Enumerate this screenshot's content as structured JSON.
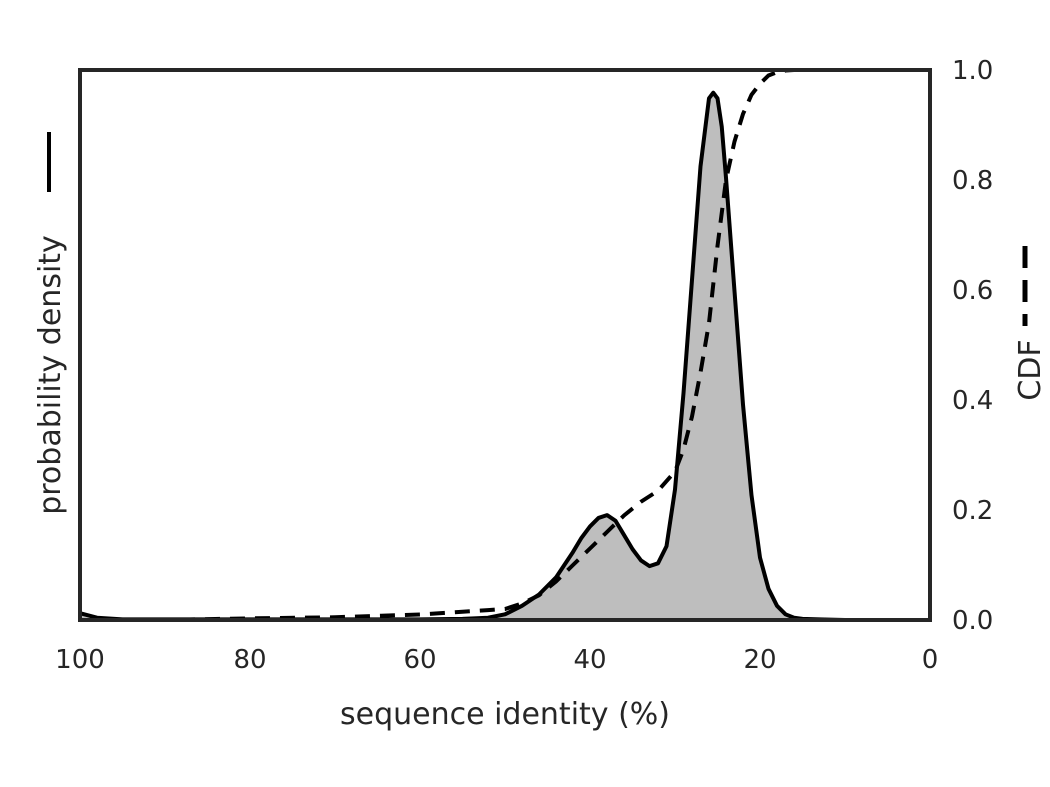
{
  "chart_data": {
    "type": "area",
    "xlabel": "sequence identity (%)",
    "ylabel_left": "probability density",
    "ylabel_right": "CDF",
    "x_reversed": true,
    "xlim": [
      100,
      0
    ],
    "x_ticks": [
      "100",
      "80",
      "60",
      "40",
      "20",
      "0"
    ],
    "x_tick_values": [
      100,
      80,
      60,
      40,
      20,
      0
    ],
    "y_right_lim": [
      0,
      1
    ],
    "y_right_ticks": [
      "0.0",
      "0.2",
      "0.4",
      "0.6",
      "0.8",
      "1.0"
    ],
    "y_right_tick_values": [
      0,
      0.2,
      0.4,
      0.6,
      0.8,
      1.0
    ],
    "y_left_ticks_shown": false,
    "grid": false,
    "colors": {
      "fill": "#bebebe",
      "line": "#000000",
      "frame": "#262626",
      "text": "#262626"
    },
    "series": [
      {
        "style": "solid-filled",
        "axis": "left",
        "x": [
          100,
          98,
          95,
          90,
          80,
          70,
          60,
          55,
          52,
          50,
          48,
          46,
          44,
          42,
          41,
          40,
          39,
          38,
          37,
          36,
          35,
          34,
          33,
          32,
          31,
          30,
          29,
          28,
          27,
          26,
          25.5,
          25,
          24.5,
          24,
          23,
          22,
          21,
          20,
          19,
          18,
          17,
          16,
          15,
          13,
          10,
          0
        ],
        "y": [
          0.012,
          0.004,
          0.001,
          0.001,
          0.001,
          0.001,
          0.001,
          0.002,
          0.004,
          0.01,
          0.025,
          0.045,
          0.075,
          0.12,
          0.145,
          0.165,
          0.18,
          0.185,
          0.175,
          0.15,
          0.125,
          0.105,
          0.095,
          0.1,
          0.13,
          0.23,
          0.4,
          0.6,
          0.8,
          0.92,
          0.93,
          0.92,
          0.87,
          0.78,
          0.58,
          0.38,
          0.22,
          0.11,
          0.055,
          0.025,
          0.01,
          0.004,
          0.002,
          0.001,
          0.0,
          0.0
        ]
      },
      {
        "style": "dashed",
        "axis": "right",
        "x": [
          100,
          95,
          90,
          80,
          70,
          60,
          55,
          52,
          50,
          48,
          46,
          44,
          42,
          40,
          38,
          36,
          34,
          32,
          30,
          29,
          28,
          27,
          26,
          25,
          24,
          23,
          22,
          21,
          20,
          19,
          18,
          17,
          16,
          10,
          0
        ],
        "y": [
          0.0,
          0.0,
          0.0,
          0.003,
          0.005,
          0.01,
          0.015,
          0.018,
          0.02,
          0.03,
          0.045,
          0.07,
          0.1,
          0.13,
          0.16,
          0.19,
          0.215,
          0.235,
          0.27,
          0.31,
          0.37,
          0.45,
          0.54,
          0.68,
          0.8,
          0.87,
          0.92,
          0.955,
          0.975,
          0.99,
          0.996,
          0.999,
          1.0,
          1.0,
          1.0
        ]
      }
    ]
  }
}
